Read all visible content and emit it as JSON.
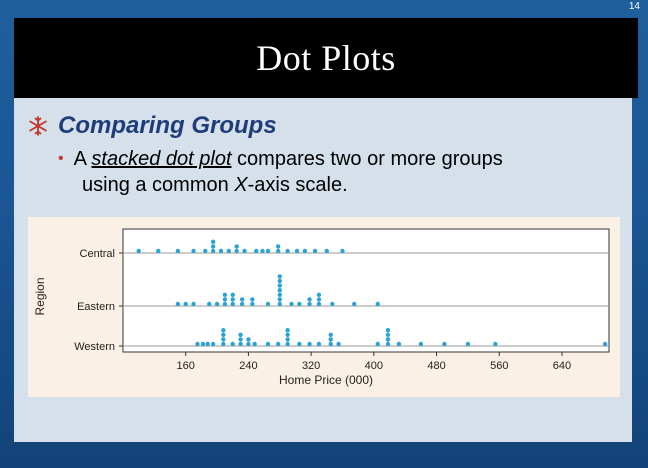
{
  "slide_number": "14",
  "title": "Dot Plots",
  "bullet": {
    "icon": "snowflake-icon",
    "heading": "Comparing Groups"
  },
  "subbullet": {
    "prefix": "A ",
    "term": "stacked dot plot",
    "middle": " compares two or more groups",
    "line2_prefix": "using a common ",
    "axis_letter": "X",
    "line2_suffix": "-axis scale."
  },
  "colors": {
    "dot": "#2aa3d6",
    "heading": "#1f3d7a",
    "icon": "#c0392b",
    "figure_bg": "#fbf0e6"
  },
  "chart_data": {
    "type": "scatter",
    "title": "",
    "xlabel": "Home Price (000)",
    "ylabel": "Region",
    "xlim": [
      80,
      700
    ],
    "x_ticks": [
      160,
      240,
      320,
      400,
      480,
      560,
      640
    ],
    "categories": [
      "Central",
      "Eastern",
      "Western"
    ],
    "grid": "horizontal",
    "series": [
      {
        "name": "Central",
        "values": [
          100,
          125,
          150,
          170,
          185,
          195,
          205,
          215,
          225,
          235,
          250,
          258,
          265,
          278,
          290,
          302,
          312,
          325,
          340,
          360
        ],
        "counts": [
          1,
          1,
          1,
          1,
          1,
          3,
          1,
          1,
          2,
          1,
          1,
          1,
          1,
          2,
          1,
          1,
          1,
          1,
          1,
          1
        ]
      },
      {
        "name": "Eastern",
        "values": [
          150,
          160,
          170,
          190,
          200,
          210,
          220,
          232,
          245,
          265,
          280,
          295,
          305,
          318,
          330,
          347,
          375,
          405
        ],
        "counts": [
          1,
          1,
          1,
          1,
          1,
          3,
          3,
          2,
          2,
          1,
          7,
          1,
          1,
          2,
          3,
          1,
          1,
          1
        ]
      },
      {
        "name": "Western",
        "values": [
          175,
          182,
          188,
          195,
          208,
          220,
          230,
          240,
          248,
          265,
          278,
          290,
          305,
          318,
          330,
          345,
          355,
          405,
          418,
          432,
          460,
          490,
          520,
          555,
          695
        ],
        "counts": [
          1,
          1,
          1,
          1,
          4,
          1,
          3,
          2,
          1,
          1,
          1,
          4,
          1,
          1,
          1,
          3,
          1,
          1,
          4,
          1,
          1,
          1,
          1,
          1,
          1
        ]
      }
    ]
  }
}
